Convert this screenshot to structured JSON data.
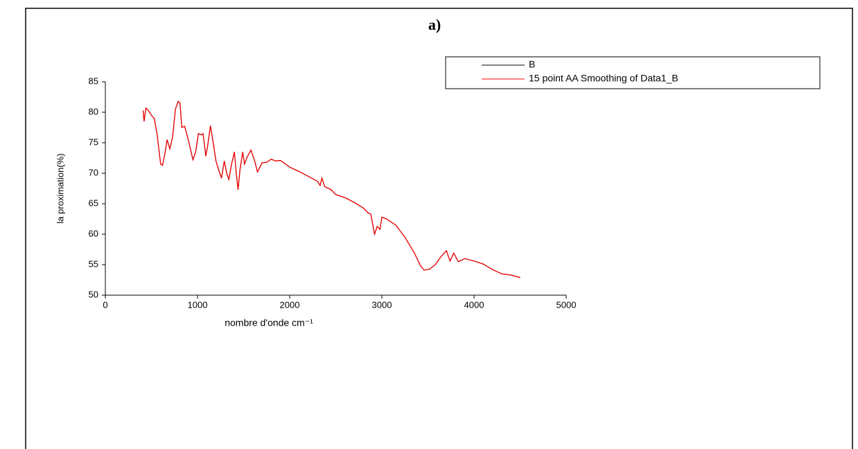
{
  "chart_data": {
    "type": "line",
    "title": "a)",
    "xlabel": "nombre d'onde cm⁻¹",
    "ylabel": "la proximation(%)",
    "xlim": [
      0,
      5000
    ],
    "xticks": [
      0,
      1000,
      2000,
      3000,
      4000,
      5000
    ],
    "ylim": [
      50,
      85
    ],
    "yticks": [
      50,
      55,
      60,
      65,
      70,
      75,
      80,
      85
    ],
    "legend": "upper right",
    "x": [
      410,
      420,
      440,
      470,
      500,
      530,
      560,
      600,
      620,
      650,
      670,
      700,
      730,
      760,
      790,
      810,
      830,
      860,
      900,
      950,
      980,
      1010,
      1040,
      1060,
      1090,
      1110,
      1140,
      1170,
      1200,
      1230,
      1260,
      1290,
      1320,
      1340,
      1370,
      1400,
      1420,
      1440,
      1460,
      1490,
      1510,
      1540,
      1580,
      1620,
      1650,
      1700,
      1750,
      1800,
      1850,
      1900,
      2000,
      2100,
      2200,
      2300,
      2330,
      2350,
      2380,
      2450,
      2500,
      2600,
      2700,
      2800,
      2850,
      2880,
      2920,
      2950,
      2980,
      3000,
      3050,
      3150,
      3250,
      3350,
      3420,
      3460,
      3520,
      3580,
      3640,
      3700,
      3740,
      3780,
      3830,
      3900,
      4000,
      4100,
      4200,
      4300,
      4400,
      4500
    ],
    "series": [
      {
        "name": "B",
        "color": "#000000",
        "values": [
          80.3,
          78.5,
          80.7,
          80.2,
          79.5,
          79.0,
          76.5,
          71.5,
          71.3,
          73.5,
          75.5,
          74.0,
          76.0,
          80.5,
          81.8,
          81.5,
          77.5,
          77.7,
          75.5,
          72.2,
          73.5,
          76.5,
          76.3,
          76.5,
          72.8,
          74.5,
          77.8,
          75.0,
          72.0,
          70.5,
          69.2,
          72.0,
          69.8,
          69.0,
          71.5,
          73.5,
          70.0,
          67.3,
          70.5,
          73.5,
          71.5,
          72.7,
          73.8,
          72.0,
          70.2,
          71.7,
          71.8,
          72.3,
          72.0,
          72.1,
          71.0,
          70.3,
          69.5,
          68.7,
          68.0,
          69.2,
          67.8,
          67.3,
          66.5,
          66.0,
          65.2,
          64.3,
          63.5,
          63.3,
          60.0,
          61.3,
          60.8,
          62.8,
          62.5,
          61.5,
          59.5,
          57.0,
          54.8,
          54.1,
          54.3,
          55.0,
          56.3,
          57.3,
          55.6,
          56.9,
          55.5,
          56.0,
          55.6,
          55.1,
          54.2,
          53.5,
          53.3,
          52.9
        ]
      },
      {
        "name": "15 point AA Smoothing of Data1_B",
        "color": "#ff0000",
        "values": [
          80.3,
          78.5,
          80.7,
          80.2,
          79.5,
          79.0,
          76.5,
          71.5,
          71.3,
          73.5,
          75.5,
          74.0,
          76.0,
          80.5,
          81.8,
          81.5,
          77.5,
          77.7,
          75.5,
          72.2,
          73.5,
          76.5,
          76.3,
          76.5,
          72.8,
          74.5,
          77.8,
          75.0,
          72.0,
          70.5,
          69.2,
          72.0,
          69.8,
          69.0,
          71.5,
          73.5,
          70.0,
          67.3,
          70.5,
          73.5,
          71.5,
          72.7,
          73.8,
          72.0,
          70.2,
          71.7,
          71.8,
          72.3,
          72.0,
          72.1,
          71.0,
          70.3,
          69.5,
          68.7,
          68.0,
          69.2,
          67.8,
          67.3,
          66.5,
          66.0,
          65.2,
          64.3,
          63.5,
          63.3,
          60.0,
          61.3,
          60.8,
          62.8,
          62.5,
          61.5,
          59.5,
          57.0,
          54.8,
          54.1,
          54.3,
          55.0,
          56.3,
          57.3,
          55.6,
          56.9,
          55.5,
          56.0,
          55.6,
          55.1,
          54.2,
          53.5,
          53.3,
          52.9
        ]
      }
    ]
  }
}
